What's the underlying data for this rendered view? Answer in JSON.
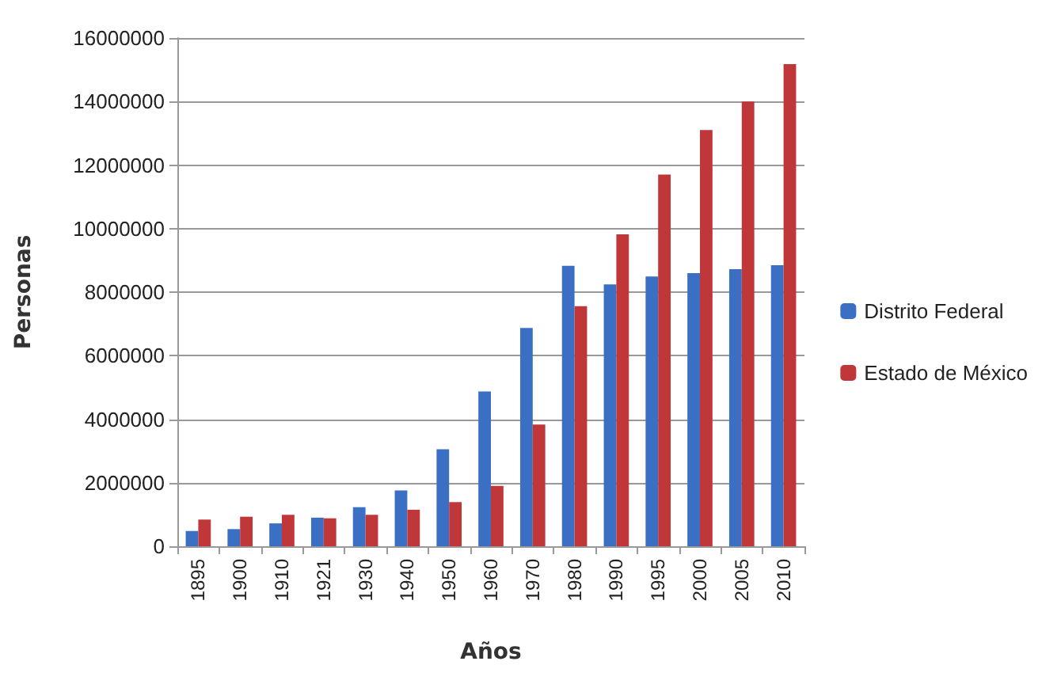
{
  "chart_data": {
    "type": "bar",
    "xlabel": "Años",
    "ylabel": "Personas",
    "categories": [
      "1895",
      "1900",
      "1910",
      "1921",
      "1930",
      "1940",
      "1950",
      "1960",
      "1970",
      "1980",
      "1990",
      "1995",
      "2000",
      "2005",
      "2010"
    ],
    "series": [
      {
        "name": "Distrito Federal",
        "color": "#3a6fc4",
        "values": [
          480000,
          540000,
          720000,
          900000,
          1230000,
          1760000,
          3050000,
          4870000,
          6870000,
          8830000,
          8240000,
          8490000,
          8600000,
          8720000,
          8850000
        ]
      },
      {
        "name": "Estado de México",
        "color": "#c0373a",
        "values": [
          840000,
          930000,
          990000,
          880000,
          990000,
          1150000,
          1390000,
          1900000,
          3830000,
          7560000,
          9820000,
          11700000,
          13100000,
          14000000,
          15180000
        ]
      }
    ],
    "ylim": [
      0,
      16000000
    ],
    "yticks": [
      0,
      2000000,
      4000000,
      6000000,
      8000000,
      10000000,
      12000000,
      14000000,
      16000000
    ],
    "grid": "y",
    "legend": "right"
  }
}
